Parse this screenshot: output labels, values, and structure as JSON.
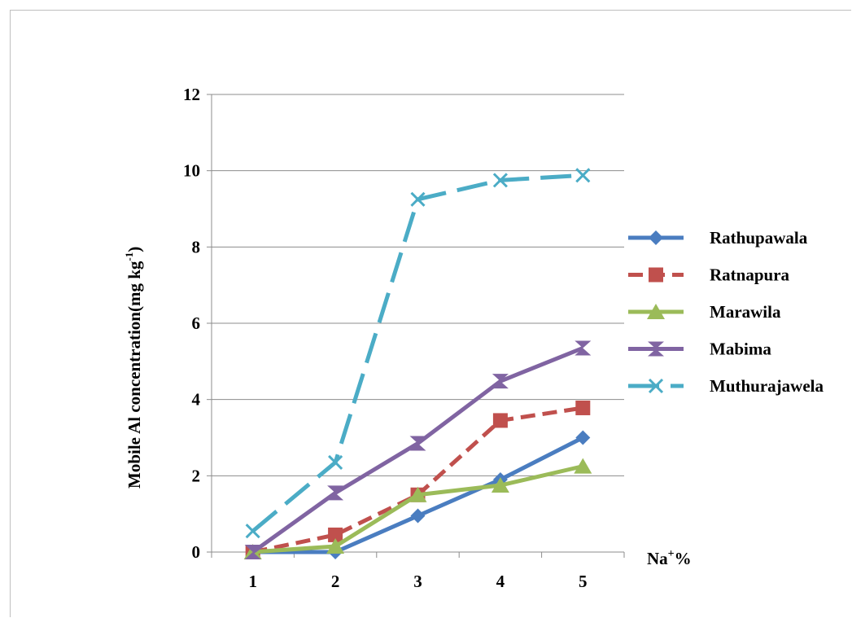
{
  "chart_data": {
    "type": "line",
    "categories": [
      "1",
      "2",
      "3",
      "4",
      "5"
    ],
    "ylabel": "Mobile  Al concentration(mg kg",
    "ylabel_sup": "-1",
    "ylabel_close": ")",
    "xlabel": "Na",
    "xlabel_sup": "+",
    "xlabel_suffix": "%",
    "ylim": [
      0,
      12
    ],
    "yticks": [
      "0",
      "2",
      "4",
      "6",
      "8",
      "10",
      "12"
    ],
    "grid": true,
    "legend_position": "right",
    "series": [
      {
        "name": "Rathupawala",
        "values": [
          0.0,
          0.0,
          0.95,
          1.9,
          3.0
        ],
        "color": "#4a7dc0",
        "marker": "diamond",
        "dash": "solid"
      },
      {
        "name": "Ratnapura",
        "values": [
          0.0,
          0.45,
          1.5,
          3.45,
          3.78
        ],
        "color": "#c0504d",
        "marker": "square",
        "dash": "dashed"
      },
      {
        "name": "Marawila",
        "values": [
          0.0,
          0.15,
          1.5,
          1.75,
          2.25
        ],
        "color": "#9bbb59",
        "marker": "triangle",
        "dash": "solid"
      },
      {
        "name": "Mabima",
        "values": [
          0.0,
          1.55,
          2.85,
          4.48,
          5.35
        ],
        "color": "#8064a2",
        "marker": "hourglass",
        "dash": "solid"
      },
      {
        "name": "Muthurajawela",
        "values": [
          0.55,
          2.35,
          9.25,
          9.75,
          9.88
        ],
        "color": "#4bacc6",
        "marker": "x",
        "dash": "longdash"
      }
    ]
  }
}
